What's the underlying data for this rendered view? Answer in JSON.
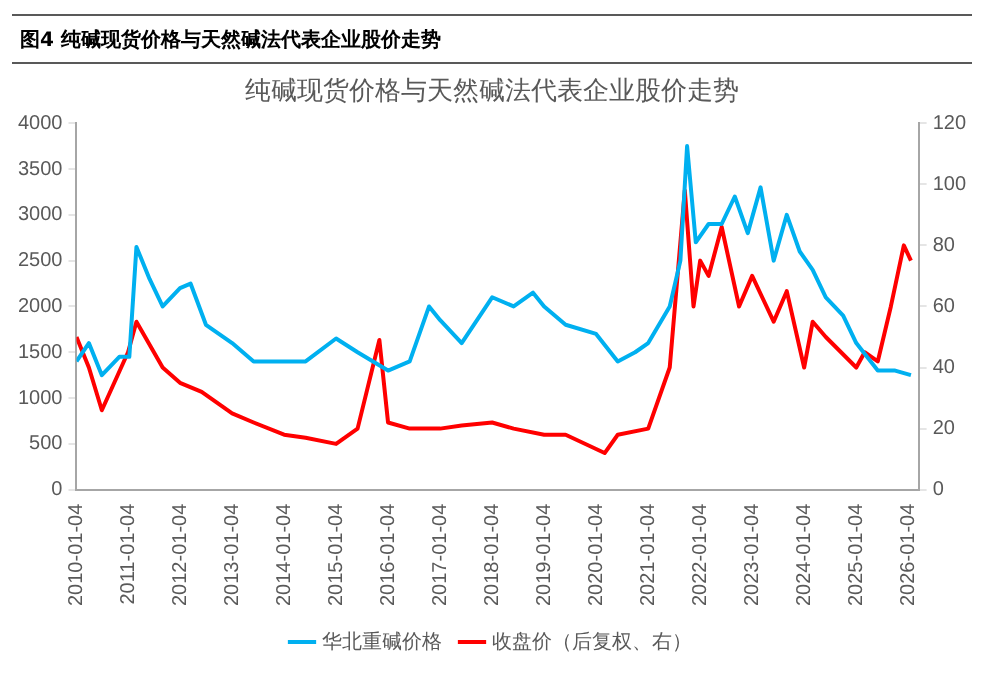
{
  "chart_data": {
    "type": "line",
    "title": "纯碱现货价格与天然碱法代表企业股价走势",
    "subtitle": "图4 纯碱现货价格与天然碱法代表企业股价走势",
    "xlim": [
      "2010-01-04",
      "2026-03-15"
    ],
    "xticks": [
      "2010-01-04",
      "2011-01-04",
      "2012-01-04",
      "2013-01-04",
      "2014-01-04",
      "2015-01-04",
      "2016-01-04",
      "2017-01-04",
      "2018-01-04",
      "2019-01-04",
      "2020-01-04",
      "2021-01-04",
      "2022-01-04",
      "2023-01-04",
      "2024-01-04",
      "2025-01-04",
      "2026-01-04"
    ],
    "ylim": [
      0,
      4000
    ],
    "yticks": [
      0,
      500,
      1000,
      1500,
      2000,
      2500,
      3000,
      3500,
      4000
    ],
    "y2lim": [
      0,
      120
    ],
    "y2ticks": [
      0,
      20,
      40,
      60,
      80,
      100,
      120
    ],
    "grid": false,
    "legend": "bottom",
    "marker": "none",
    "series": [
      {
        "name": "华北重碱价格",
        "color": "#00b0f0",
        "x": [
          "2010-01-04",
          "2010-04-01",
          "2010-07-01",
          "2010-11-01",
          "2011-01-10",
          "2011-03-01",
          "2011-06-01",
          "2011-09-01",
          "2012-01-01",
          "2012-03-15",
          "2012-07-01",
          "2013-01-01",
          "2013-06-01",
          "2014-01-01",
          "2014-06-01",
          "2015-01-01",
          "2015-06-01",
          "2016-01-01",
          "2016-06-01",
          "2016-10-15",
          "2017-01-01",
          "2017-06-01",
          "2018-01-01",
          "2018-06-01",
          "2018-10-15",
          "2019-01-01",
          "2019-06-01",
          "2020-01-01",
          "2020-06-01",
          "2020-10-01",
          "2021-01-01",
          "2021-06-01",
          "2021-08-15",
          "2021-10-01",
          "2021-12-01",
          "2022-03-01",
          "2022-06-01",
          "2022-09-01",
          "2022-12-01",
          "2023-03-01",
          "2023-06-01",
          "2023-09-01",
          "2023-12-01",
          "2024-03-01",
          "2024-06-01",
          "2024-10-01",
          "2025-01-01",
          "2025-06-01",
          "2025-10-01",
          "2026-01-20"
        ],
        "values": [
          1400,
          1600,
          1250,
          1450,
          1450,
          2650,
          2300,
          2000,
          2200,
          2250,
          1800,
          1600,
          1400,
          1400,
          1400,
          1650,
          1500,
          1300,
          1400,
          2000,
          1850,
          1600,
          2100,
          2000,
          2150,
          2000,
          1800,
          1700,
          1400,
          1500,
          1600,
          2000,
          2500,
          3750,
          2700,
          2900,
          2900,
          3200,
          2800,
          3300,
          2500,
          3000,
          2600,
          2400,
          2100,
          1900,
          1600,
          1300,
          1300,
          1250
        ]
      },
      {
        "name": "收盘价（后复权、右）",
        "color": "#ff0000",
        "axis": "y2",
        "x": [
          "2010-01-04",
          "2010-04-01",
          "2010-07-01",
          "2011-01-01",
          "2011-03-01",
          "2011-09-01",
          "2012-01-01",
          "2012-06-01",
          "2013-01-01",
          "2013-06-01",
          "2014-01-01",
          "2014-06-01",
          "2015-01-01",
          "2015-06-01",
          "2015-11-01",
          "2016-01-01",
          "2016-06-01",
          "2017-01-01",
          "2017-06-01",
          "2018-01-01",
          "2018-06-01",
          "2019-01-01",
          "2019-06-01",
          "2020-03-01",
          "2020-06-01",
          "2021-01-01",
          "2021-06-01",
          "2021-09-15",
          "2021-11-15",
          "2022-01-01",
          "2022-03-01",
          "2022-06-01",
          "2022-10-01",
          "2023-01-01",
          "2023-06-01",
          "2023-09-01",
          "2024-01-01",
          "2024-03-01",
          "2024-06-01",
          "2025-01-01",
          "2025-03-01",
          "2025-06-01",
          "2025-09-01",
          "2025-12-01",
          "2026-01-20"
        ],
        "values": [
          50,
          40,
          26,
          45,
          55,
          40,
          35,
          32,
          25,
          22,
          18,
          17,
          15,
          20,
          49,
          22,
          20,
          20,
          21,
          22,
          20,
          18,
          18,
          12,
          18,
          20,
          40,
          98,
          60,
          75,
          70,
          86,
          60,
          70,
          55,
          65,
          40,
          55,
          50,
          40,
          45,
          42,
          60,
          80,
          75
        ]
      }
    ]
  }
}
